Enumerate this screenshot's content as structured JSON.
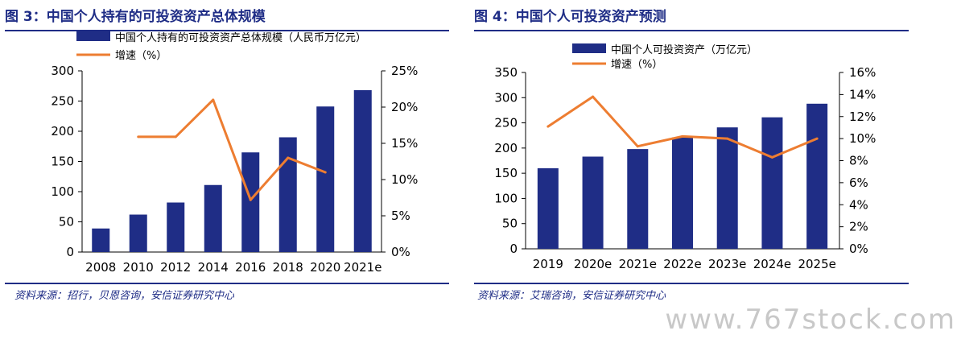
{
  "figures": [
    {
      "title": "图 3：中国个人持有的可投资资产总体规模",
      "source": "资料来源：招行，贝恩咨询，安信证券研究中心"
    },
    {
      "title": "图 4：中国个人可投资资产预测",
      "source": "资料来源：艾瑞咨询，安信证券研究中心"
    }
  ],
  "watermark": "www.767stock.com",
  "colors": {
    "bar": "#1f2d86",
    "line": "#ed7d31",
    "title": "#1f2d86"
  },
  "chart_data": [
    {
      "type": "bar",
      "categories": [
        "2008",
        "2010",
        "2012",
        "2014",
        "2016",
        "2018",
        "2020",
        "2021e"
      ],
      "series": [
        {
          "name": "中国个人持有的可投资资产总体规模（人民币万亿元）",
          "type": "bar",
          "axis": "left",
          "values": [
            39,
            62,
            82,
            111,
            165,
            190,
            241,
            268
          ]
        },
        {
          "name": "增速（%）",
          "type": "line",
          "axis": "right",
          "values": [
            null,
            15.9,
            15.9,
            21.0,
            7.2,
            13.0,
            11.0,
            null
          ]
        }
      ],
      "ylim": [
        0,
        300
      ],
      "yticks": [
        0,
        50,
        100,
        150,
        200,
        250,
        300
      ],
      "y2lim": [
        0,
        25
      ],
      "y2ticks": [
        "0%",
        "5%",
        "10%",
        "15%",
        "20%",
        "25%"
      ],
      "legend": "top-left",
      "grid": false
    },
    {
      "type": "bar",
      "categories": [
        "2019",
        "2020e",
        "2021e",
        "2022e",
        "2023e",
        "2024e",
        "2025e"
      ],
      "series": [
        {
          "name": "中国个人可投资资产（万亿元）",
          "type": "bar",
          "axis": "left",
          "values": [
            160,
            183,
            198,
            221,
            241,
            261,
            288
          ]
        },
        {
          "name": "增速（%）",
          "type": "line",
          "axis": "right",
          "values": [
            11.1,
            13.8,
            9.3,
            10.2,
            10.0,
            8.3,
            10.0
          ]
        }
      ],
      "ylim": [
        0,
        350
      ],
      "yticks": [
        0,
        50,
        100,
        150,
        200,
        250,
        300,
        350
      ],
      "y2lim": [
        0,
        16
      ],
      "y2ticks": [
        "0%",
        "2%",
        "4%",
        "6%",
        "8%",
        "10%",
        "12%",
        "14%",
        "16%"
      ],
      "legend": "top-left",
      "grid": false
    }
  ]
}
